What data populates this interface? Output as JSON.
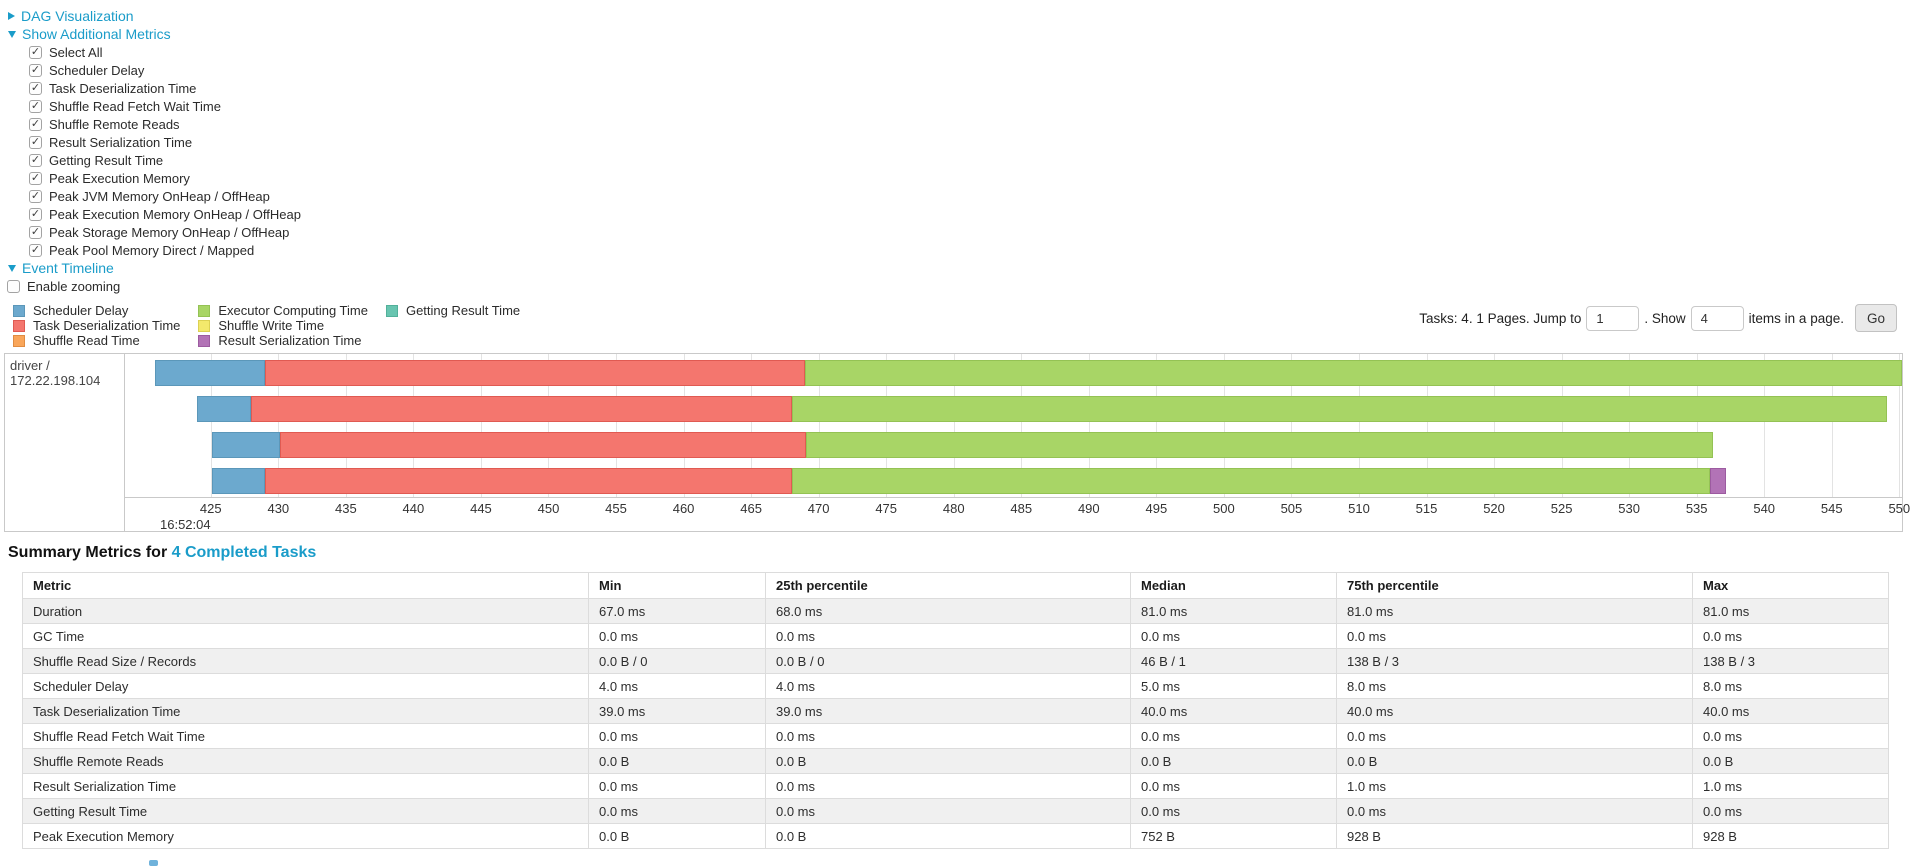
{
  "accent_link_color": "#1A9CC9",
  "sections": {
    "dag": {
      "label": "DAG Visualization",
      "collapsed": true
    },
    "metrics": {
      "label": "Show Additional Metrics",
      "collapsed": false
    },
    "timeline": {
      "label": "Event Timeline",
      "collapsed": false
    }
  },
  "metric_checkboxes": [
    {
      "label": "Select All",
      "checked": true
    },
    {
      "label": "Scheduler Delay",
      "checked": true
    },
    {
      "label": "Task Deserialization Time",
      "checked": true
    },
    {
      "label": "Shuffle Read Fetch Wait Time",
      "checked": true
    },
    {
      "label": "Shuffle Remote Reads",
      "checked": true
    },
    {
      "label": "Result Serialization Time",
      "checked": true
    },
    {
      "label": "Getting Result Time",
      "checked": true
    },
    {
      "label": "Peak Execution Memory",
      "checked": true
    },
    {
      "label": "Peak JVM Memory OnHeap / OffHeap",
      "checked": true
    },
    {
      "label": "Peak Execution Memory OnHeap / OffHeap",
      "checked": true
    },
    {
      "label": "Peak Storage Memory OnHeap / OffHeap",
      "checked": true
    },
    {
      "label": "Peak Pool Memory Direct / Mapped",
      "checked": true
    }
  ],
  "enable_zooming": {
    "label": "Enable zooming",
    "checked": false
  },
  "legend": [
    {
      "label": "Scheduler Delay",
      "color": "#6CA9CE",
      "border": "#5B97B9"
    },
    {
      "label": "Task Deserialization Time",
      "color": "#F4766E",
      "border": "#E05A52"
    },
    {
      "label": "Shuffle Read Time",
      "color": "#F9A65A",
      "border": "#E08C42"
    },
    {
      "label": "Executor Computing Time",
      "color": "#A8D566",
      "border": "#94C254"
    },
    {
      "label": "Shuffle Write Time",
      "color": "#F3E96C",
      "border": "#DCD152"
    },
    {
      "label": "Result Serialization Time",
      "color": "#B273B6",
      "border": "#9C5BA0"
    },
    {
      "label": "Getting Result Time",
      "color": "#68C5B0",
      "border": "#52B09A"
    }
  ],
  "pager": {
    "prefix": "Tasks: 4. 1 Pages. Jump to",
    "jump_value": "1",
    "mid": ". Show",
    "show_value": "4",
    "suffix": "items in a page.",
    "go_label": "Go"
  },
  "chart_data": {
    "type": "timeline",
    "group_label": "driver / 172.22.198.104",
    "x_axis": {
      "min": 418.65,
      "max": 550.2,
      "tick_start": 425,
      "tick_end": 550,
      "tick_step": 5,
      "unit": "ms of second",
      "base_time_label": "16:52:04"
    },
    "tasks": [
      {
        "segments": [
          {
            "name": "Scheduler Delay",
            "start": 420.9,
            "end": 429.0
          },
          {
            "name": "Task Deserialization Time",
            "start": 429.0,
            "end": 469.0
          },
          {
            "name": "Executor Computing Time",
            "start": 469.0,
            "end": 550.2
          }
        ]
      },
      {
        "segments": [
          {
            "name": "Scheduler Delay",
            "start": 424.0,
            "end": 428.0
          },
          {
            "name": "Task Deserialization Time",
            "start": 428.0,
            "end": 468.0
          },
          {
            "name": "Executor Computing Time",
            "start": 468.0,
            "end": 549.1
          }
        ]
      },
      {
        "segments": [
          {
            "name": "Scheduler Delay",
            "start": 425.1,
            "end": 430.1
          },
          {
            "name": "Task Deserialization Time",
            "start": 430.1,
            "end": 469.1
          },
          {
            "name": "Executor Computing Time",
            "start": 469.1,
            "end": 536.2
          }
        ]
      },
      {
        "segments": [
          {
            "name": "Scheduler Delay",
            "start": 425.1,
            "end": 429.0
          },
          {
            "name": "Task Deserialization Time",
            "start": 429.0,
            "end": 468.0
          },
          {
            "name": "Executor Computing Time",
            "start": 468.0,
            "end": 536.0
          },
          {
            "name": "Result Serialization Time",
            "start": 536.0,
            "end": 537.2
          }
        ]
      }
    ]
  },
  "summary": {
    "title_prefix": "Summary Metrics for",
    "title_link": "4 Completed Tasks",
    "columns": [
      "Metric",
      "Min",
      "25th percentile",
      "Median",
      "75th percentile",
      "Max"
    ],
    "rows": [
      [
        "Duration",
        "67.0 ms",
        "68.0 ms",
        "81.0 ms",
        "81.0 ms",
        "81.0 ms"
      ],
      [
        "GC Time",
        "0.0 ms",
        "0.0 ms",
        "0.0 ms",
        "0.0 ms",
        "0.0 ms"
      ],
      [
        "Shuffle Read Size / Records",
        "0.0 B / 0",
        "0.0 B / 0",
        "46 B / 1",
        "138 B / 3",
        "138 B / 3"
      ],
      [
        "Scheduler Delay",
        "4.0 ms",
        "4.0 ms",
        "5.0 ms",
        "8.0 ms",
        "8.0 ms"
      ],
      [
        "Task Deserialization Time",
        "39.0 ms",
        "39.0 ms",
        "40.0 ms",
        "40.0 ms",
        "40.0 ms"
      ],
      [
        "Shuffle Read Fetch Wait Time",
        "0.0 ms",
        "0.0 ms",
        "0.0 ms",
        "0.0 ms",
        "0.0 ms"
      ],
      [
        "Shuffle Remote Reads",
        "0.0 B",
        "0.0 B",
        "0.0 B",
        "0.0 B",
        "0.0 B"
      ],
      [
        "Result Serialization Time",
        "0.0 ms",
        "0.0 ms",
        "0.0 ms",
        "1.0 ms",
        "1.0 ms"
      ],
      [
        "Getting Result Time",
        "0.0 ms",
        "0.0 ms",
        "0.0 ms",
        "0.0 ms",
        "0.0 ms"
      ],
      [
        "Peak Execution Memory",
        "0.0 B",
        "0.0 B",
        "752 B",
        "928 B",
        "928 B"
      ]
    ]
  }
}
